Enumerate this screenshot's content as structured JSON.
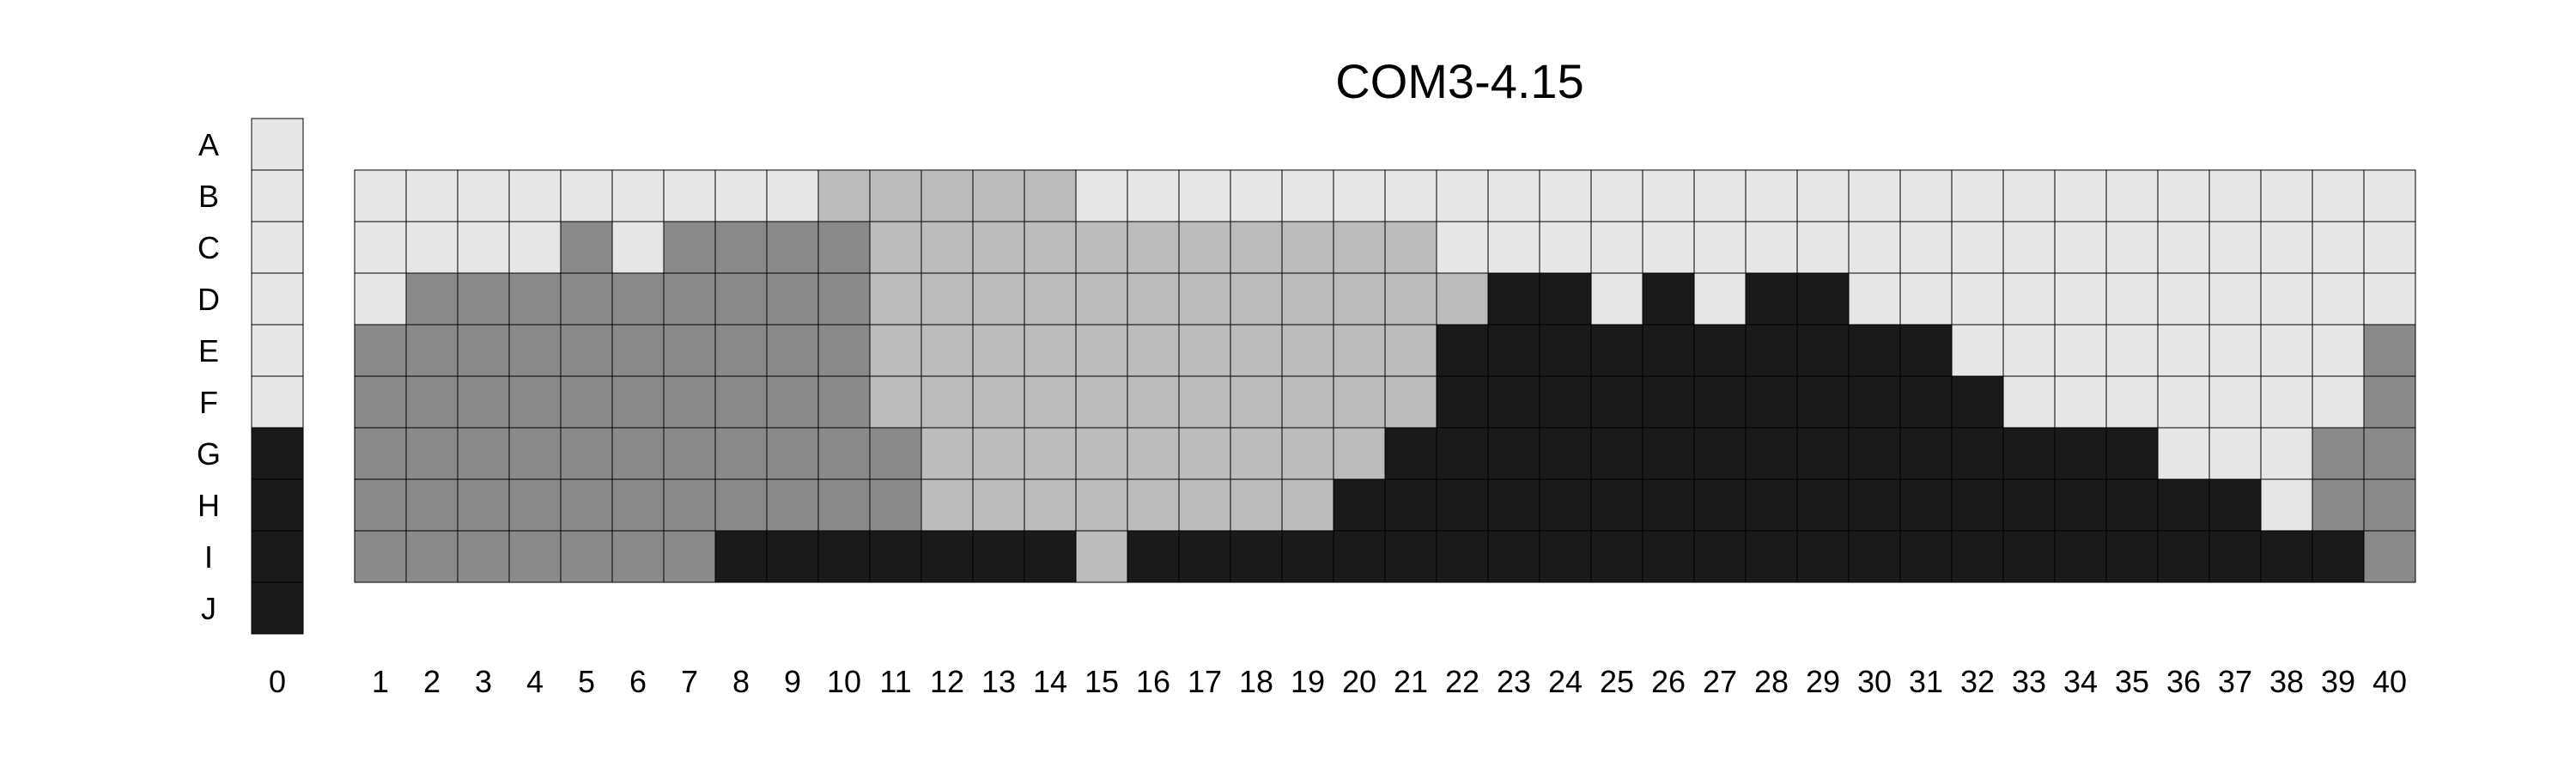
{
  "chart_data": {
    "type": "heatmap",
    "title": "COM3-4.15",
    "rows": [
      "A",
      "B",
      "C",
      "D",
      "E",
      "F",
      "G",
      "H",
      "I",
      "J"
    ],
    "legend_column": {
      "label": "0",
      "levels": [
        0,
        0,
        0,
        0,
        0,
        0,
        3,
        3,
        3,
        3
      ]
    },
    "columns": [
      "1",
      "2",
      "3",
      "4",
      "5",
      "6",
      "7",
      "8",
      "9",
      "10",
      "11",
      "12",
      "13",
      "14",
      "15",
      "16",
      "17",
      "18",
      "19",
      "20",
      "21",
      "22",
      "23",
      "24",
      "25",
      "26",
      "27",
      "28",
      "29",
      "30",
      "31",
      "32",
      "33",
      "34",
      "35",
      "36",
      "37",
      "38",
      "39",
      "40"
    ],
    "grid_rows": [
      "B",
      "C",
      "D",
      "E",
      "F",
      "G",
      "H",
      "I"
    ],
    "levels": [
      [
        0,
        0,
        0,
        0,
        0,
        0,
        0,
        0,
        0,
        1,
        1,
        1,
        1,
        1,
        0,
        0,
        0,
        0,
        0,
        0,
        0,
        0,
        0,
        0,
        0,
        0,
        0,
        0,
        0,
        0,
        0,
        0,
        0,
        0,
        0,
        0,
        0,
        0,
        0,
        0
      ],
      [
        0,
        0,
        0,
        0,
        2,
        0,
        2,
        2,
        2,
        2,
        1,
        1,
        1,
        1,
        1,
        1,
        1,
        1,
        1,
        1,
        1,
        0,
        0,
        0,
        0,
        0,
        0,
        0,
        0,
        0,
        0,
        0,
        0,
        0,
        0,
        0,
        0,
        0,
        0,
        0
      ],
      [
        0,
        2,
        2,
        2,
        2,
        2,
        2,
        2,
        2,
        2,
        1,
        1,
        1,
        1,
        1,
        1,
        1,
        1,
        1,
        1,
        1,
        1,
        3,
        3,
        0,
        3,
        0,
        3,
        3,
        0,
        0,
        0,
        0,
        0,
        0,
        0,
        0,
        0,
        0,
        0
      ],
      [
        2,
        2,
        2,
        2,
        2,
        2,
        2,
        2,
        2,
        2,
        1,
        1,
        1,
        1,
        1,
        1,
        1,
        1,
        1,
        1,
        1,
        3,
        3,
        3,
        3,
        3,
        3,
        3,
        3,
        3,
        3,
        0,
        0,
        0,
        0,
        0,
        0,
        0,
        0,
        2
      ],
      [
        2,
        2,
        2,
        2,
        2,
        2,
        2,
        2,
        2,
        2,
        1,
        1,
        1,
        1,
        1,
        1,
        1,
        1,
        1,
        1,
        1,
        3,
        3,
        3,
        3,
        3,
        3,
        3,
        3,
        3,
        3,
        3,
        0,
        0,
        0,
        0,
        0,
        0,
        0,
        2
      ],
      [
        2,
        2,
        2,
        2,
        2,
        2,
        2,
        2,
        2,
        2,
        2,
        1,
        1,
        1,
        1,
        1,
        1,
        1,
        1,
        1,
        3,
        3,
        3,
        3,
        3,
        3,
        3,
        3,
        3,
        3,
        3,
        3,
        3,
        3,
        3,
        0,
        0,
        0,
        2,
        2
      ],
      [
        2,
        2,
        2,
        2,
        2,
        2,
        2,
        2,
        2,
        2,
        2,
        1,
        1,
        1,
        1,
        1,
        1,
        1,
        1,
        3,
        3,
        3,
        3,
        3,
        3,
        3,
        3,
        3,
        3,
        3,
        3,
        3,
        3,
        3,
        3,
        3,
        3,
        0,
        2,
        2
      ],
      [
        2,
        2,
        2,
        2,
        2,
        2,
        2,
        3,
        3,
        3,
        3,
        3,
        3,
        3,
        1,
        3,
        3,
        3,
        3,
        3,
        3,
        3,
        3,
        3,
        3,
        3,
        3,
        3,
        3,
        3,
        3,
        3,
        3,
        3,
        3,
        3,
        3,
        3,
        3,
        2
      ]
    ],
    "colors": [
      "#e6e6e6",
      "#bcbcbc",
      "#8a8a8a",
      "#1a1a1a"
    ]
  }
}
